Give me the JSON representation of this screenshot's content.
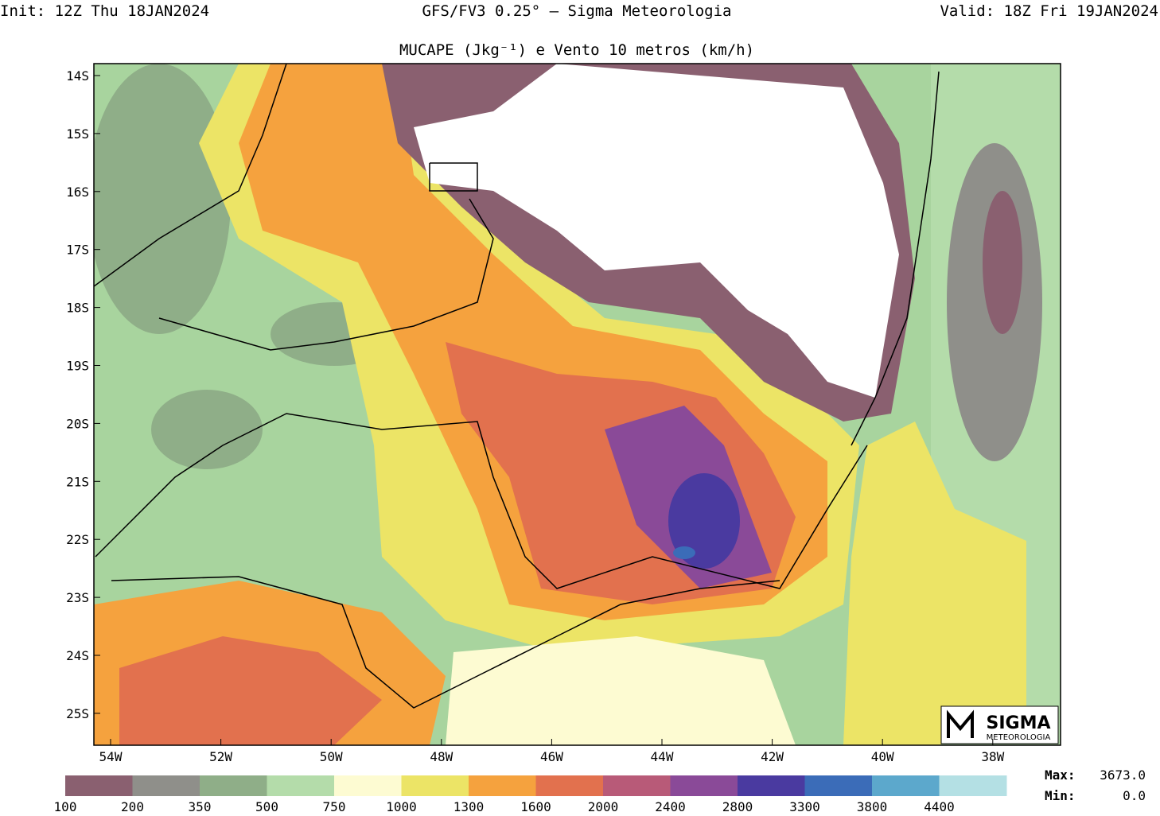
{
  "header": {
    "init": "Init: 12Z Thu 18JAN2024",
    "model": "GFS/FV3 0.25° — Sigma Meteorologia",
    "valid": "Valid: 18Z Fri 19JAN2024",
    "subtitle": "MUCAPE (Jkg⁻¹) e Vento 10 metros (km/h)"
  },
  "map": {
    "lat_labels": [
      "14S",
      "15S",
      "16S",
      "17S",
      "18S",
      "19S",
      "20S",
      "21S",
      "22S",
      "23S",
      "24S",
      "25S"
    ],
    "lon_labels": [
      "54W",
      "52W",
      "50W",
      "48W",
      "46W",
      "44W",
      "42W",
      "40W",
      "38W"
    ]
  },
  "colorbar": {
    "colors": [
      "#8a6070",
      "#8f8f8a",
      "#8fae88",
      "#b4dcaa",
      "#fdfbd2",
      "#ece466",
      "#f5a23e",
      "#e2714e",
      "#b85a78",
      "#8a4a98",
      "#4a3aa0",
      "#3b6cb8",
      "#5ca8cc",
      "#b4e0e4"
    ],
    "labels": [
      "100",
      "200",
      "350",
      "500",
      "750",
      "1000",
      "1300",
      "1600",
      "2000",
      "2400",
      "2800",
      "3300",
      "3800",
      "4400"
    ]
  },
  "stats": {
    "max_label": "Max:",
    "max": "3673.0",
    "min_label": "Min:",
    "min": "0.0"
  },
  "logo": {
    "name": "SIGMA",
    "sub": "METEOROLOGIA"
  }
}
